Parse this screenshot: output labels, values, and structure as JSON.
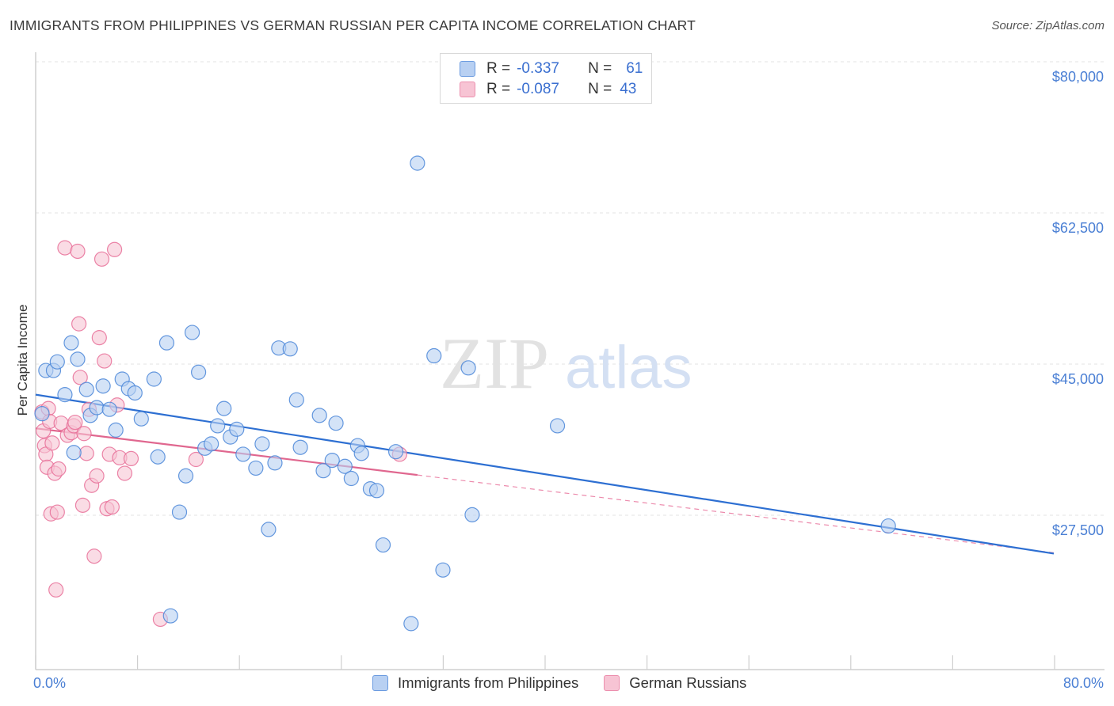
{
  "title": "IMMIGRANTS FROM PHILIPPINES VS GERMAN RUSSIAN PER CAPITA INCOME CORRELATION CHART",
  "source": "Source: ZipAtlas.com",
  "watermark": "ZIPatlas",
  "chart_data": {
    "type": "scatter",
    "title": "IMMIGRANTS FROM PHILIPPINES VS GERMAN RUSSIAN PER CAPITA INCOME CORRELATION CHART",
    "xlabel": "",
    "ylabel": "Per Capita Income",
    "xlim": [
      0,
      80
    ],
    "ylim": [
      12000,
      82000
    ],
    "x_tick_labels": [
      "0.0%",
      "80.0%"
    ],
    "y_ticks": [
      27500,
      45000,
      62500,
      80000
    ],
    "y_tick_labels": [
      "$27,500",
      "$45,000",
      "$62,500",
      "$80,000"
    ],
    "grid": true,
    "series": [
      {
        "name": "Immigrants from Philippines",
        "color": "#4a86d8",
        "fill": "#b8d0f2",
        "R": "-0.337",
        "N": "61",
        "trend": {
          "x0": 0,
          "y0": 43200,
          "x1": 80,
          "y1": 24800
        },
        "points": [
          [
            0.8,
            46000
          ],
          [
            1.4,
            46000
          ],
          [
            1.7,
            47000
          ],
          [
            2.3,
            43200
          ],
          [
            2.8,
            49200
          ],
          [
            3.3,
            47300
          ],
          [
            4.0,
            43800
          ],
          [
            4.3,
            40800
          ],
          [
            4.8,
            41700
          ],
          [
            5.3,
            44200
          ],
          [
            5.8,
            41500
          ],
          [
            6.3,
            39100
          ],
          [
            6.8,
            45000
          ],
          [
            7.3,
            43900
          ],
          [
            7.8,
            43400
          ],
          [
            8.3,
            40400
          ],
          [
            9.3,
            45000
          ],
          [
            9.6,
            36000
          ],
          [
            10.3,
            49200
          ],
          [
            11.3,
            29600
          ],
          [
            11.8,
            33800
          ],
          [
            12.3,
            50400
          ],
          [
            12.8,
            45800
          ],
          [
            13.3,
            37000
          ],
          [
            13.8,
            37500
          ],
          [
            14.3,
            39600
          ],
          [
            14.8,
            41600
          ],
          [
            15.3,
            38300
          ],
          [
            15.8,
            39200
          ],
          [
            16.3,
            36300
          ],
          [
            17.3,
            34700
          ],
          [
            17.8,
            37500
          ],
          [
            18.3,
            27600
          ],
          [
            18.8,
            35300
          ],
          [
            19.1,
            48600
          ],
          [
            20.0,
            48500
          ],
          [
            20.5,
            42600
          ],
          [
            20.8,
            37100
          ],
          [
            22.3,
            40800
          ],
          [
            22.6,
            34400
          ],
          [
            23.3,
            35600
          ],
          [
            23.6,
            39900
          ],
          [
            24.3,
            34900
          ],
          [
            24.8,
            33500
          ],
          [
            25.3,
            37300
          ],
          [
            25.6,
            36400
          ],
          [
            26.3,
            32300
          ],
          [
            26.8,
            32100
          ],
          [
            27.3,
            25800
          ],
          [
            28.3,
            36600
          ],
          [
            29.5,
            16700
          ],
          [
            30.0,
            70000
          ],
          [
            31.3,
            47700
          ],
          [
            32.0,
            22900
          ],
          [
            34.0,
            46300
          ],
          [
            34.3,
            29300
          ],
          [
            10.6,
            17600
          ],
          [
            41.0,
            39600
          ],
          [
            67.0,
            28000
          ],
          [
            0.5,
            41000
          ],
          [
            3.0,
            36500
          ]
        ]
      },
      {
        "name": "German Russians",
        "color": "#e86e98",
        "fill": "#f7c4d4",
        "R": "-0.087",
        "N": "43",
        "trend": {
          "x0": 0,
          "y0": 39300,
          "x1": 30,
          "y1": 33900
        },
        "trend_ext": {
          "x0": 30,
          "y0": 33900,
          "x1": 80,
          "y1": 24900
        },
        "points": [
          [
            0.5,
            41200
          ],
          [
            0.6,
            39000
          ],
          [
            0.7,
            37300
          ],
          [
            0.8,
            36300
          ],
          [
            0.9,
            34800
          ],
          [
            1.0,
            41600
          ],
          [
            1.1,
            40100
          ],
          [
            1.2,
            29400
          ],
          [
            1.3,
            37600
          ],
          [
            1.5,
            34100
          ],
          [
            1.6,
            20600
          ],
          [
            1.7,
            29600
          ],
          [
            1.8,
            34600
          ],
          [
            2.0,
            39900
          ],
          [
            2.3,
            60200
          ],
          [
            2.5,
            38500
          ],
          [
            2.8,
            38800
          ],
          [
            3.0,
            39600
          ],
          [
            3.1,
            40000
          ],
          [
            3.3,
            59800
          ],
          [
            3.4,
            51400
          ],
          [
            3.5,
            45200
          ],
          [
            3.7,
            30400
          ],
          [
            3.8,
            38700
          ],
          [
            4.0,
            36400
          ],
          [
            4.2,
            41500
          ],
          [
            4.4,
            32700
          ],
          [
            4.6,
            24500
          ],
          [
            4.8,
            33800
          ],
          [
            5.0,
            49800
          ],
          [
            5.2,
            58900
          ],
          [
            5.4,
            47100
          ],
          [
            5.6,
            30000
          ],
          [
            5.8,
            36300
          ],
          [
            6.0,
            30200
          ],
          [
            6.2,
            60000
          ],
          [
            6.4,
            42000
          ],
          [
            6.6,
            35900
          ],
          [
            7.0,
            34100
          ],
          [
            7.5,
            35800
          ],
          [
            9.8,
            17200
          ],
          [
            12.6,
            35700
          ],
          [
            28.6,
            36300
          ]
        ]
      }
    ]
  },
  "legend": {
    "r_label": "R =",
    "n_label": "N =",
    "series1_r": "-0.337",
    "series1_n": "61",
    "series2_r": "-0.087",
    "series2_n": "43"
  },
  "bottom_legend": {
    "series1": "Immigrants from Philippines",
    "series2": "German Russians"
  }
}
